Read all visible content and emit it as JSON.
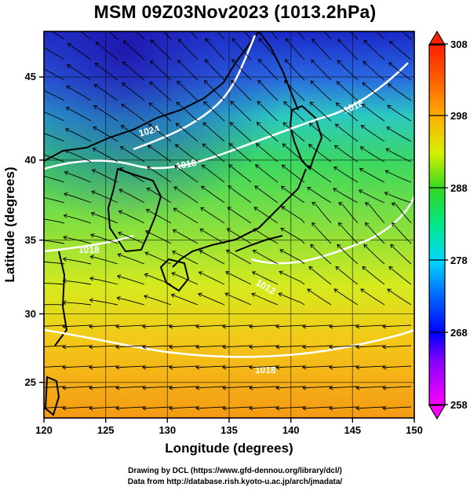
{
  "title": "MSM 09Z03Nov2023 (1013.2hPa)",
  "x_axis": {
    "label": "Longitude (degrees)",
    "ticks": [
      "120",
      "125",
      "130",
      "135",
      "140",
      "145",
      "150"
    ]
  },
  "y_axis": {
    "label": "Latitude  (degrees)",
    "ticks": [
      "25",
      "30",
      "35",
      "40",
      "45"
    ]
  },
  "colorbar": {
    "ticks": [
      "258",
      "268",
      "278",
      "288",
      "298",
      "308"
    ],
    "colors": [
      "#ff00ff",
      "#0000ff",
      "#00c8ff",
      "#00e070",
      "#e8ff00",
      "#ff9900",
      "#ff3300"
    ]
  },
  "contour_labels": [
    "1024",
    "1018",
    "1018",
    "1012",
    "1018",
    "1018"
  ],
  "credits": {
    "line1": "Drawing by DCL (https://www.gfd-dennou.org/library/dcl/)",
    "line2": "Data from http://database.rish.kyoto-u.ac.jp/arch/jmadata/"
  },
  "chart_data": {
    "type": "heatmap",
    "title": "MSM 09Z03Nov2023 (1013.2hPa)",
    "xlabel": "Longitude (degrees)",
    "ylabel": "Latitude  (degrees)",
    "xlim": [
      120,
      150
    ],
    "ylim": [
      22.4,
      47.6
    ],
    "color_range": [
      258,
      308
    ],
    "grid": true
  }
}
